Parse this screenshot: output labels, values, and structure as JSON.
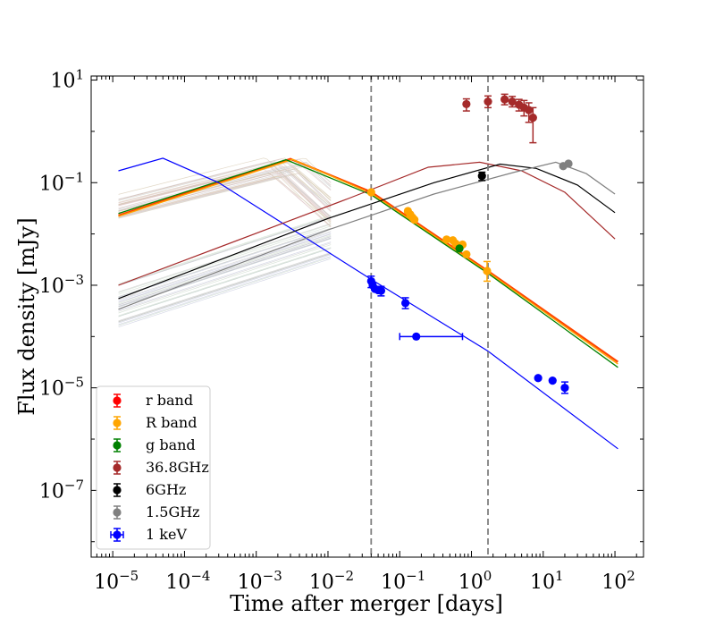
{
  "chart_data": {
    "type": "scatter",
    "title": "",
    "xlabel": "Time after merger [days]",
    "ylabel": "Flux density [mJy]",
    "x_scale": "log",
    "y_scale": "log",
    "xlim": [
      5e-06,
      250
    ],
    "ylim": [
      5e-09,
      12
    ],
    "x_ticks": [
      {
        "base": "10",
        "exp": "−5",
        "value": 1e-05
      },
      {
        "base": "10",
        "exp": "−4",
        "value": 0.0001
      },
      {
        "base": "10",
        "exp": "−3",
        "value": 0.001
      },
      {
        "base": "10",
        "exp": "−2",
        "value": 0.01
      },
      {
        "base": "10",
        "exp": "−1",
        "value": 0.1
      },
      {
        "base": "10",
        "exp": "0",
        "value": 1
      },
      {
        "base": "10",
        "exp": "1",
        "value": 10
      },
      {
        "base": "10",
        "exp": "2",
        "value": 100
      }
    ],
    "y_ticks": [
      {
        "base": "10",
        "exp": "1",
        "value": 10
      },
      {
        "base": "10",
        "exp": "−1",
        "value": 0.1
      },
      {
        "base": "10",
        "exp": "−3",
        "value": 0.001
      },
      {
        "base": "10",
        "exp": "−5",
        "value": 1e-05
      },
      {
        "base": "10",
        "exp": "−7",
        "value": 1e-07
      }
    ],
    "vlines": [
      0.04,
      1.7
    ],
    "legend_location": "lower-left",
    "series": [
      {
        "name": "r band",
        "color": "#ff0000",
        "points": []
      },
      {
        "name": "R band",
        "color": "#ffa500",
        "points": [
          {
            "x": 0.04,
            "y": 0.065
          },
          {
            "x": 0.13,
            "y": 0.028
          },
          {
            "x": 0.14,
            "y": 0.024
          },
          {
            "x": 0.15,
            "y": 0.021
          },
          {
            "x": 0.16,
            "y": 0.019
          },
          {
            "x": 0.45,
            "y": 0.0078
          },
          {
            "x": 0.55,
            "y": 0.0075
          },
          {
            "x": 0.6,
            "y": 0.0065
          },
          {
            "x": 0.75,
            "y": 0.0062
          },
          {
            "x": 0.85,
            "y": 0.004
          },
          {
            "x": 1.65,
            "y": 0.0019,
            "yerr_lo": 0.0012,
            "yerr_hi": 0.0029
          }
        ]
      },
      {
        "name": "g band",
        "color": "#008000",
        "points": [
          {
            "x": 0.68,
            "y": 0.0052
          }
        ]
      },
      {
        "name": "36.8GHz",
        "color": "#a52a2a",
        "points": [
          {
            "x": 0.85,
            "y": 3.4,
            "yerr_lo": 2.5,
            "yerr_hi": 4.3
          },
          {
            "x": 1.7,
            "y": 3.8,
            "yerr_lo": 2.9,
            "yerr_hi": 4.9
          },
          {
            "x": 2.9,
            "y": 4.2,
            "yerr_lo": 3.3,
            "yerr_hi": 5.3
          },
          {
            "x": 3.7,
            "y": 3.8,
            "yerr_lo": 3.0,
            "yerr_hi": 4.8
          },
          {
            "x": 4.6,
            "y": 3.3,
            "yerr_lo": 2.5,
            "yerr_hi": 4.2
          },
          {
            "x": 5.4,
            "y": 2.9,
            "yerr_lo": 2.0,
            "yerr_hi": 4.0
          },
          {
            "x": 6.3,
            "y": 2.6,
            "yerr_lo": 1.5,
            "yerr_hi": 3.6
          },
          {
            "x": 7.2,
            "y": 1.85,
            "yerr_lo": 0.6,
            "yerr_hi": 2.9
          }
        ]
      },
      {
        "name": "6GHz",
        "color": "#000000",
        "points": [
          {
            "x": 1.4,
            "y": 0.135,
            "yerr_lo": 0.11,
            "yerr_hi": 0.16
          }
        ]
      },
      {
        "name": "1.5GHz",
        "color": "#808080",
        "points": [
          {
            "x": 19,
            "y": 0.21
          },
          {
            "x": 22.5,
            "y": 0.235
          }
        ]
      },
      {
        "name": "1 keV",
        "color": "#0000ff",
        "points": [
          {
            "x": 0.04,
            "y": 0.0012,
            "yerr_lo": 0.0009,
            "yerr_hi": 0.0015
          },
          {
            "x": 0.042,
            "y": 0.001
          },
          {
            "x": 0.045,
            "y": 0.00085
          },
          {
            "x": 0.05,
            "y": 0.0008
          },
          {
            "x": 0.055,
            "y": 0.00078,
            "yerr_lo": 0.00062,
            "yerr_hi": 0.00095
          },
          {
            "x": 0.12,
            "y": 0.00045,
            "yerr_lo": 0.00035,
            "yerr_hi": 0.00057
          },
          {
            "x": 0.17,
            "y": 0.0001,
            "xerr_lo": 0.1,
            "xerr_hi": 0.75
          },
          {
            "x": 8.5,
            "y": 1.55e-05
          },
          {
            "x": 13.5,
            "y": 1.38e-05
          },
          {
            "x": 20,
            "y": 1e-05,
            "yerr_lo": 7.8e-06,
            "yerr_hi": 1.3e-05
          }
        ]
      }
    ],
    "model_curves": [
      {
        "color": "#ff4500",
        "width": 2.2,
        "points": [
          [
            1.2e-05,
            0.023
          ],
          [
            0.003,
            0.29
          ],
          [
            0.04,
            0.066
          ],
          [
            1.7,
            0.0019
          ],
          [
            110,
            3.2e-05
          ]
        ]
      },
      {
        "color": "#ffa500",
        "width": 1.4,
        "points": [
          [
            1.2e-05,
            0.022
          ],
          [
            0.0032,
            0.285
          ],
          [
            0.04,
            0.062
          ],
          [
            1.7,
            0.0018
          ],
          [
            110,
            2.9e-05
          ]
        ]
      },
      {
        "color": "#008000",
        "width": 1.3,
        "points": [
          [
            1.2e-05,
            0.025
          ],
          [
            0.0026,
            0.28
          ],
          [
            0.04,
            0.058
          ],
          [
            1.7,
            0.0017
          ],
          [
            110,
            2.5e-05
          ]
        ]
      },
      {
        "color": "#0000ff",
        "width": 1.2,
        "points": [
          [
            1.2e-05,
            0.17
          ],
          [
            5e-05,
            0.3
          ],
          [
            0.0003,
            0.1
          ],
          [
            0.04,
            0.0013
          ],
          [
            1.7,
            5.2e-05
          ],
          [
            110,
            6.5e-07
          ]
        ]
      },
      {
        "color": "#a52a2a",
        "width": 1.2,
        "points": [
          [
            1.2e-05,
            0.001
          ],
          [
            0.02,
            0.05
          ],
          [
            0.25,
            0.2
          ],
          [
            1.3,
            0.25
          ],
          [
            5,
            0.17
          ],
          [
            20,
            0.065
          ],
          [
            100,
            0.008
          ]
        ]
      },
      {
        "color": "#000000",
        "width": 1.2,
        "points": [
          [
            1.2e-05,
            0.00055
          ],
          [
            0.01,
            0.02
          ],
          [
            0.3,
            0.1
          ],
          [
            2.5,
            0.23
          ],
          [
            8,
            0.19
          ],
          [
            30,
            0.09
          ],
          [
            100,
            0.026
          ]
        ]
      },
      {
        "color": "#808080",
        "width": 1.2,
        "points": [
          [
            1.2e-05,
            0.00034
          ],
          [
            0.01,
            0.012
          ],
          [
            0.3,
            0.06
          ],
          [
            4,
            0.16
          ],
          [
            15,
            0.25
          ],
          [
            40,
            0.15
          ],
          [
            100,
            0.06
          ]
        ]
      }
    ],
    "legend": [
      {
        "label": "r band",
        "color": "#ff0000",
        "xerr": false
      },
      {
        "label": "R band",
        "color": "#ffa500",
        "xerr": false
      },
      {
        "label": "g band",
        "color": "#008000",
        "xerr": false
      },
      {
        "label": "36.8GHz",
        "color": "#a52a2a",
        "xerr": false
      },
      {
        "label": "6GHz",
        "color": "#000000",
        "xerr": false
      },
      {
        "label": "1.5GHz",
        "color": "#808080",
        "xerr": false
      },
      {
        "label": "1 keV",
        "color": "#0000ff",
        "xerr": true
      }
    ]
  }
}
